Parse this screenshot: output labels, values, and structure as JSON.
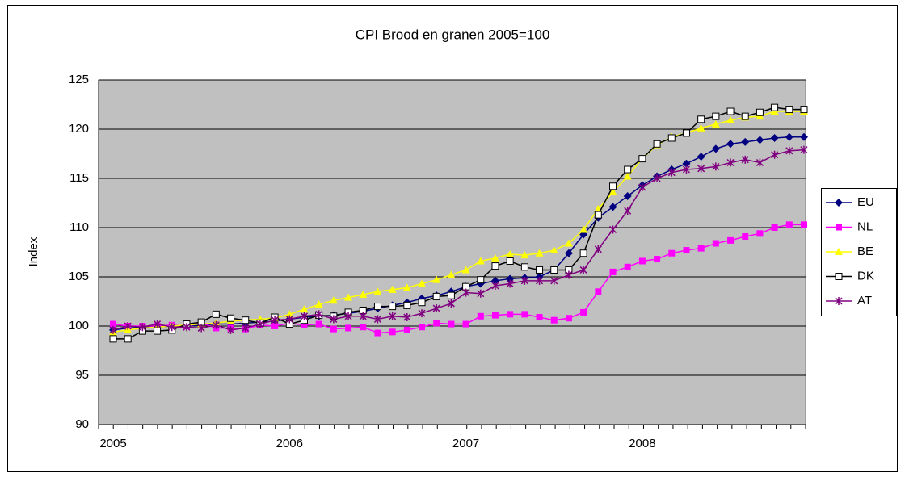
{
  "chart_data": {
    "type": "line",
    "title": "CPI Brood en granen 2005=100",
    "y_label": "Index",
    "categories": [
      "2005",
      null,
      null,
      null,
      null,
      null,
      null,
      null,
      null,
      null,
      null,
      null,
      "2006",
      null,
      null,
      null,
      null,
      null,
      null,
      null,
      null,
      null,
      null,
      null,
      "2007",
      null,
      null,
      null,
      null,
      null,
      null,
      null,
      null,
      null,
      null,
      null,
      "2008",
      null,
      null,
      null,
      null,
      null,
      null,
      null,
      null,
      null,
      null,
      null
    ],
    "ylim": [
      90,
      125
    ],
    "yticks": [
      90,
      95,
      100,
      105,
      110,
      115,
      120,
      125
    ],
    "grid": true,
    "legend": "right",
    "series": [
      {
        "name": "EU",
        "color": "#000080",
        "marker": "diamond",
        "values": [
          99.6,
          99.8,
          99.9,
          99.9,
          100.0,
          100.0,
          100.1,
          100.2,
          100.2,
          100.3,
          100.4,
          100.5,
          100.7,
          100.9,
          101.0,
          101.1,
          101.3,
          101.5,
          101.8,
          102.1,
          102.4,
          102.8,
          103.1,
          103.5,
          104.0,
          104.3,
          104.6,
          104.8,
          104.9,
          105.0,
          105.7,
          107.4,
          109.3,
          111.0,
          112.1,
          113.2,
          114.3,
          115.2,
          115.9,
          116.5,
          117.2,
          118.0,
          118.5,
          118.7,
          118.9,
          119.1,
          119.2,
          119.2
        ]
      },
      {
        "name": "NL",
        "color": "#ff00ff",
        "marker": "square",
        "values": [
          100.2,
          100.0,
          100.0,
          100.0,
          100.1,
          100.0,
          100.3,
          99.8,
          99.8,
          99.7,
          100.1,
          100.0,
          100.3,
          100.1,
          100.2,
          99.7,
          99.8,
          99.9,
          99.3,
          99.4,
          99.6,
          99.9,
          100.3,
          100.2,
          100.2,
          101.0,
          101.1,
          101.2,
          101.2,
          100.9,
          100.6,
          100.8,
          101.4,
          103.5,
          105.5,
          106.0,
          106.6,
          106.8,
          107.4,
          107.7,
          107.9,
          108.4,
          108.7,
          109.1,
          109.4,
          110.0,
          110.3,
          110.3
        ]
      },
      {
        "name": "BE",
        "color": "#ffff00",
        "marker": "triangle",
        "values": [
          99.4,
          99.6,
          99.8,
          99.9,
          100.0,
          100.1,
          100.2,
          100.3,
          100.5,
          100.6,
          100.7,
          100.8,
          101.2,
          101.7,
          102.2,
          102.6,
          102.9,
          103.2,
          103.5,
          103.7,
          103.9,
          104.3,
          104.7,
          105.2,
          105.7,
          106.6,
          106.9,
          107.3,
          107.2,
          107.4,
          107.7,
          108.4,
          109.8,
          111.9,
          113.6,
          115.2,
          117.0,
          118.4,
          119.2,
          119.6,
          120.1,
          120.5,
          120.9,
          121.2,
          121.3,
          121.8,
          121.8,
          121.8
        ]
      },
      {
        "name": "DK",
        "color": "#000000",
        "marker": "open-square",
        "values": [
          98.7,
          98.7,
          99.5,
          99.5,
          99.6,
          100.2,
          100.4,
          101.2,
          100.8,
          100.6,
          100.3,
          100.9,
          100.2,
          100.6,
          101.1,
          101.0,
          101.4,
          101.6,
          102.0,
          102.0,
          102.1,
          102.4,
          103.0,
          103.1,
          104.0,
          104.7,
          106.1,
          106.6,
          106.0,
          105.7,
          105.7,
          105.7,
          107.4,
          111.3,
          114.2,
          115.9,
          117.0,
          118.5,
          119.1,
          119.6,
          121.0,
          121.3,
          121.8,
          121.3,
          121.7,
          122.2,
          122.0,
          122.0
        ]
      },
      {
        "name": "AT",
        "color": "#800080",
        "marker": "star",
        "values": [
          99.6,
          100.0,
          99.9,
          100.2,
          99.9,
          99.9,
          99.8,
          100.1,
          99.6,
          99.8,
          100.2,
          100.6,
          100.7,
          101.0,
          101.2,
          100.7,
          101.0,
          101.0,
          100.7,
          101.0,
          100.9,
          101.3,
          101.8,
          102.3,
          103.4,
          103.3,
          104.1,
          104.3,
          104.6,
          104.6,
          104.6,
          105.2,
          105.7,
          107.8,
          109.8,
          111.7,
          114.1,
          115.0,
          115.6,
          115.9,
          116.0,
          116.2,
          116.6,
          116.9,
          116.6,
          117.4,
          117.8,
          117.9
        ]
      }
    ]
  }
}
